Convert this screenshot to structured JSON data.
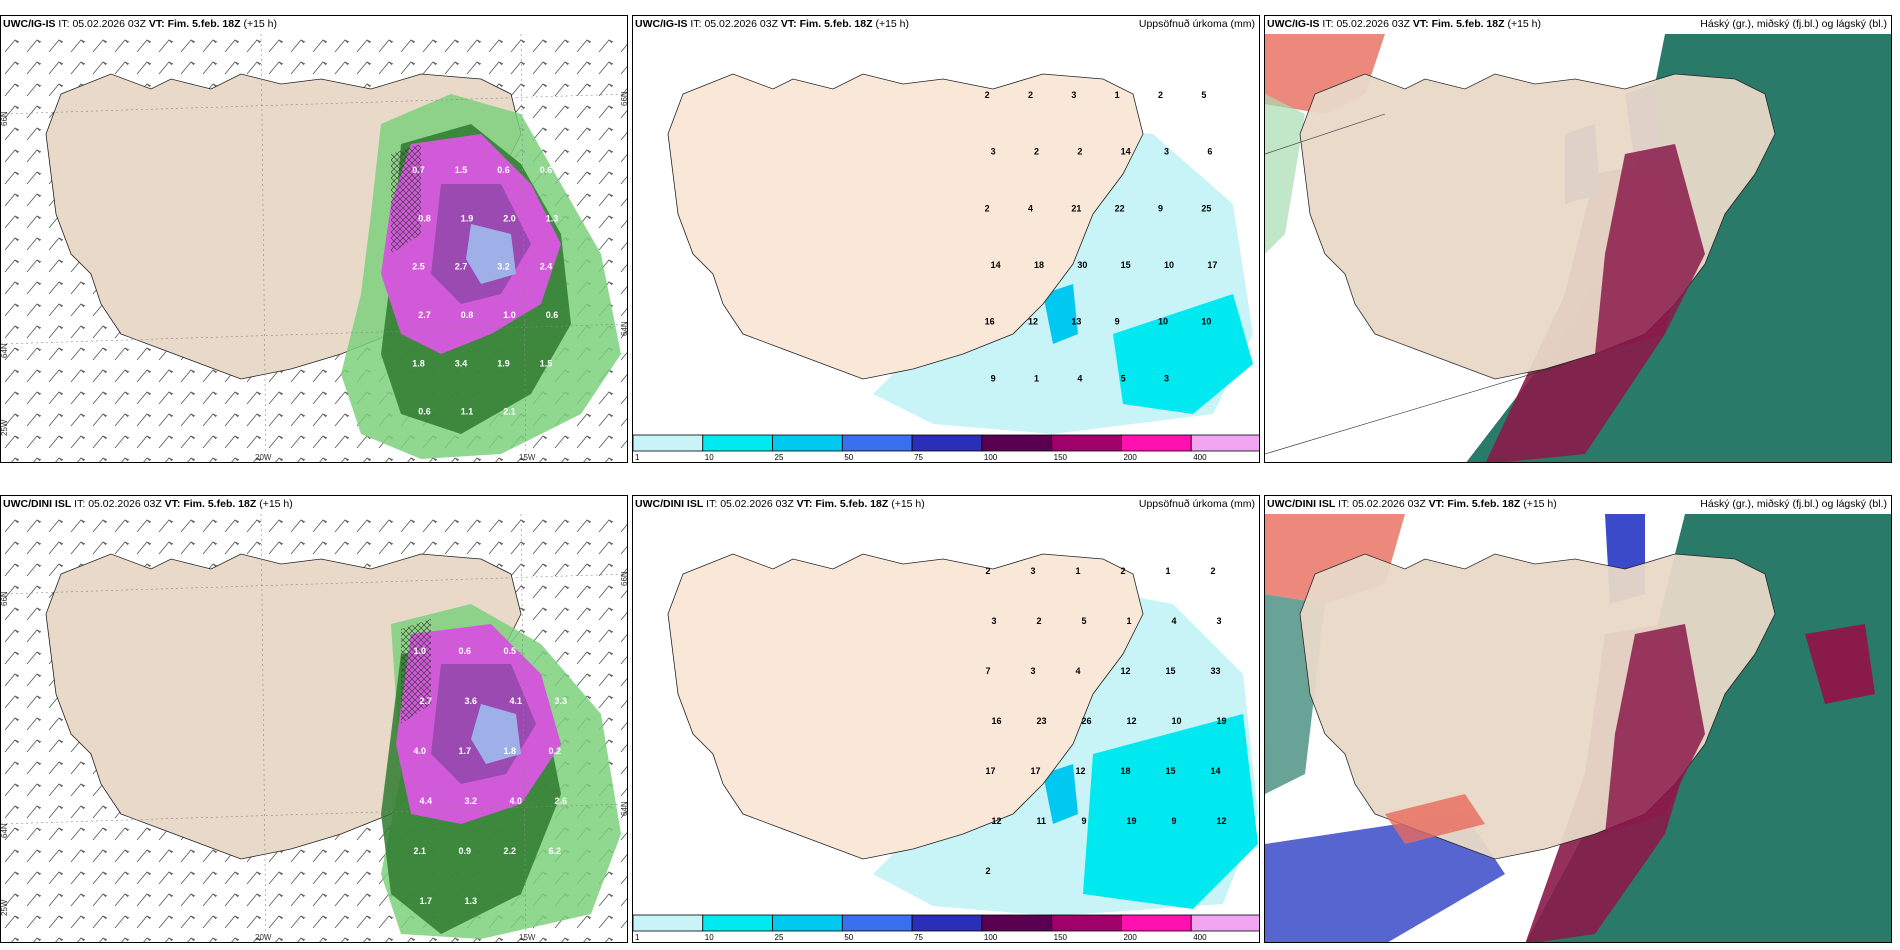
{
  "panels": {
    "r1c1": {
      "model": "UWC/IG-IS",
      "it_label": "IT:",
      "it": "05.02.2026 03Z",
      "vt_label": "VT:",
      "vt": "Fim. 5.feb. 18Z",
      "lead": "(+15 h)",
      "right": ""
    },
    "r1c2": {
      "model": "UWC/IG-IS",
      "it_label": "IT:",
      "it": "05.02.2026 03Z",
      "vt_label": "VT:",
      "vt": "Fim. 5.feb. 18Z",
      "lead": "(+15 h)",
      "right": "Uppsöfnuð úrkoma (mm)"
    },
    "r1c3": {
      "model": "UWC/IG-IS",
      "it_label": "IT:",
      "it": "05.02.2026 03Z",
      "vt_label": "VT:",
      "vt": "Fim. 5.feb. 18Z",
      "lead": "(+15 h)",
      "right": "Háský (gr.), miðský (fj.bl.) og lágský (bl.)"
    },
    "r2c1": {
      "model": "UWC/DINI ISL",
      "it_label": "IT:",
      "it": "05.02.2026 03Z",
      "vt_label": "VT:",
      "vt": "Fim. 5.feb. 18Z",
      "lead": "(+15 h)",
      "right": ""
    },
    "r2c2": {
      "model": "UWC/DINI ISL",
      "it_label": "IT:",
      "it": "05.02.2026 03Z",
      "vt_label": "VT:",
      "vt": "Fim. 5.feb. 18Z",
      "lead": "(+15 h)",
      "right": "Uppsöfnuð úrkoma (mm)"
    },
    "r2c3": {
      "model": "UWC/DINI ISL",
      "it_label": "IT:",
      "it": "05.02.2026 03Z",
      "vt_label": "VT:",
      "vt": "Fim. 5.feb. 18Z",
      "lead": "(+15 h)",
      "right": "Háský (gr.), miðský (fj.bl.) og lágský (bl.)"
    }
  },
  "axes": {
    "lat": [
      "66N",
      "64N",
      "25W"
    ],
    "lon": [
      "20W",
      "15W"
    ],
    "right_lat": [
      "66N",
      "64N"
    ]
  },
  "colorbar": {
    "labels": [
      "1",
      "10",
      "25",
      "50",
      "75",
      "100",
      "150",
      "200",
      "400"
    ],
    "colors": [
      "#c8f4f7",
      "#00e8f0",
      "#00c8f0",
      "#3a6ff0",
      "#2b2fb8",
      "#5a0050",
      "#a0006a",
      "#ff10b0",
      "#f2a6f2"
    ]
  },
  "snow_labels_top": [
    "0.7",
    "1.5",
    "0.6",
    "0.6",
    "0.8",
    "1.9",
    "2.0",
    "1.3",
    "2.5",
    "2.7",
    "3.2",
    "2.4",
    "2.7",
    "0.8",
    "1.0",
    "0.6",
    "1.8",
    "3.4",
    "1.9",
    "1.5",
    "0.6",
    "1.1",
    "2.1"
  ],
  "snow_labels_bottom": [
    "1.0",
    "0.6",
    "0.5",
    "1.1",
    "2.7",
    "3.6",
    "4.1",
    "3.3",
    "4.0",
    "1.7",
    "1.8",
    "0.2",
    "4.4",
    "3.2",
    "4.0",
    "2.6",
    "2.1",
    "0.9",
    "2.2",
    "6.2",
    "1.7",
    "1.3"
  ],
  "precip_labels_top": [
    "2",
    "2",
    "3",
    "1",
    "2",
    "5",
    "3",
    "2",
    "2",
    "14",
    "3",
    "6",
    "2",
    "4",
    "21",
    "22",
    "9",
    "25",
    "14",
    "18",
    "30",
    "15",
    "10",
    "17",
    "16",
    "12",
    "13",
    "9",
    "10",
    "10",
    "9",
    "1",
    "4",
    "5",
    "3"
  ],
  "precip_labels_bottom": [
    "2",
    "3",
    "1",
    "2",
    "1",
    "2",
    "3",
    "2",
    "5",
    "1",
    "4",
    "3",
    "7",
    "3",
    "4",
    "12",
    "15",
    "33",
    "16",
    "23",
    "26",
    "12",
    "10",
    "19",
    "17",
    "17",
    "12",
    "18",
    "15",
    "14",
    "12",
    "11",
    "9",
    "19",
    "9",
    "12",
    "2"
  ]
}
